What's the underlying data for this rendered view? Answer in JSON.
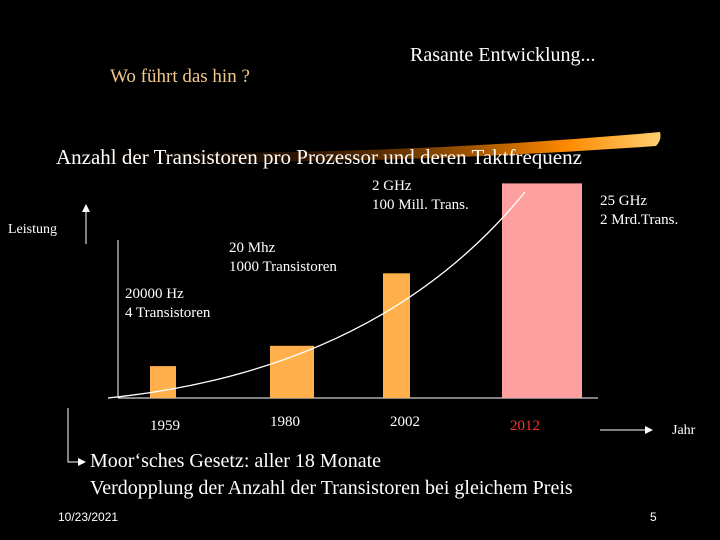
{
  "header": {
    "question": "Wo führt das hin ?",
    "headline": "Rasante Entwicklung..."
  },
  "title": "Anzahl der Transistoren pro Prozessor und deren Taktfrequenz",
  "axes": {
    "y_label": "Leistung",
    "x_label": "Jahr"
  },
  "years": [
    "1959",
    "1980",
    "2002",
    "2012"
  ],
  "bars": [
    {
      "year": "1959",
      "level": 0.11,
      "color": "#ffb04a"
    },
    {
      "year": "1980",
      "level": 0.18,
      "color": "#ffb04a"
    },
    {
      "year": "2002",
      "level": 0.43,
      "color": "#ffb04a"
    },
    {
      "year": "2012",
      "level": 0.74,
      "color": "#ffa0a0"
    }
  ],
  "annotations": {
    "a1959": [
      "20000 Hz",
      "4 Transistoren"
    ],
    "a1980": [
      "20 Mhz",
      "1000 Transistoren"
    ],
    "a2002": [
      "2 GHz",
      "100 Mill. Trans."
    ],
    "a2012": [
      "25 GHz",
      "2 Mrd.Trans."
    ]
  },
  "moore": {
    "line1": "Moor‘sches Gesetz: aller 18 Monate",
    "line2": "Verdopplung der Anzahl der Transistoren bei gleichem Preis"
  },
  "footer": {
    "date": "10/23/2021",
    "page": "5"
  }
}
